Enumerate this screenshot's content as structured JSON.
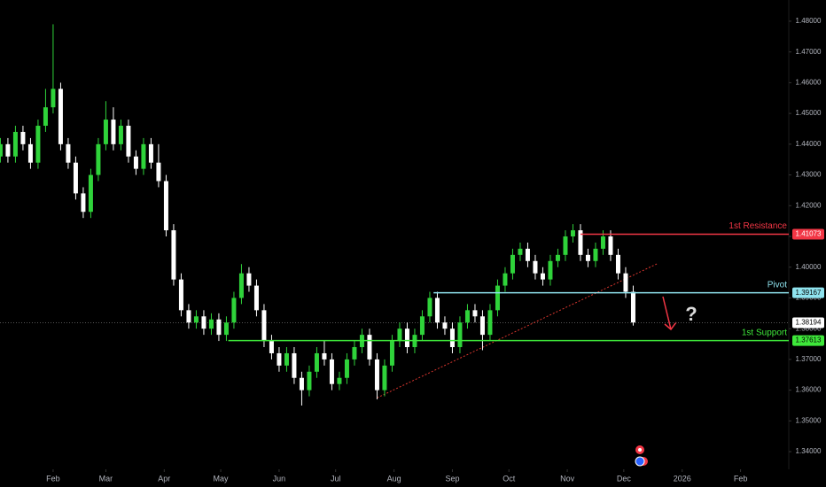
{
  "chart_data": {
    "type": "candlestick",
    "x": [
      3,
      7,
      11,
      15,
      19,
      23,
      27,
      31,
      35,
      39,
      43,
      47,
      51,
      55,
      59,
      63,
      67,
      71,
      75,
      79,
      83,
      87,
      91,
      95,
      99,
      103,
      107,
      111,
      115,
      119,
      123,
      127,
      131,
      135,
      139,
      143,
      147,
      151,
      155,
      159,
      163,
      167,
      171,
      175,
      179,
      183,
      187,
      191,
      195,
      199,
      203,
      207,
      211,
      215,
      219,
      223,
      227,
      231,
      235,
      239,
      243,
      247,
      251,
      255,
      259,
      263,
      267,
      271,
      275,
      279,
      283,
      287,
      291,
      295,
      299,
      303,
      307,
      311,
      315,
      319,
      323,
      327,
      331,
      335,
      339
    ],
    "open": [
      1.436,
      1.44,
      1.436,
      1.444,
      1.44,
      1.434,
      1.446,
      1.452,
      1.458,
      1.44,
      1.434,
      1.424,
      1.418,
      1.43,
      1.44,
      1.448,
      1.44,
      1.446,
      1.436,
      1.432,
      1.44,
      1.434,
      1.428,
      1.412,
      1.396,
      1.386,
      1.382,
      1.384,
      1.38,
      1.383,
      1.378,
      1.382,
      1.39,
      1.398,
      1.394,
      1.386,
      1.376,
      1.372,
      1.368,
      1.372,
      1.364,
      1.36,
      1.366,
      1.372,
      1.37,
      1.362,
      1.364,
      1.37,
      1.374,
      1.378,
      1.37,
      1.36,
      1.368,
      1.376,
      1.38,
      1.374,
      1.378,
      1.384,
      1.39,
      1.382,
      1.38,
      1.374,
      1.382,
      1.386,
      1.384,
      1.378,
      1.386,
      1.394,
      1.398,
      1.404,
      1.406,
      1.402,
      1.398,
      1.396,
      1.402,
      1.404,
      1.41,
      1.412,
      1.404,
      1.402,
      1.406,
      1.41,
      1.404,
      1.398,
      1.392
    ],
    "high": [
      1.442,
      1.442,
      1.446,
      1.446,
      1.442,
      1.448,
      1.458,
      1.479,
      1.46,
      1.442,
      1.436,
      1.426,
      1.432,
      1.442,
      1.454,
      1.452,
      1.448,
      1.448,
      1.438,
      1.442,
      1.442,
      1.44,
      1.43,
      1.414,
      1.398,
      1.388,
      1.386,
      1.386,
      1.385,
      1.385,
      1.384,
      1.392,
      1.401,
      1.4,
      1.396,
      1.388,
      1.378,
      1.374,
      1.374,
      1.374,
      1.366,
      1.368,
      1.374,
      1.376,
      1.372,
      1.366,
      1.372,
      1.376,
      1.38,
      1.38,
      1.372,
      1.37,
      1.378,
      1.382,
      1.382,
      1.38,
      1.386,
      1.392,
      1.392,
      1.384,
      1.382,
      1.384,
      1.388,
      1.388,
      1.386,
      1.388,
      1.396,
      1.4,
      1.406,
      1.408,
      1.408,
      1.404,
      1.4,
      1.404,
      1.406,
      1.412,
      1.414,
      1.414,
      1.406,
      1.408,
      1.412,
      1.412,
      1.406,
      1.4,
      1.394
    ],
    "low": [
      1.434,
      1.434,
      1.434,
      1.438,
      1.432,
      1.432,
      1.444,
      1.45,
      1.438,
      1.432,
      1.422,
      1.416,
      1.416,
      1.428,
      1.438,
      1.438,
      1.438,
      1.434,
      1.43,
      1.43,
      1.432,
      1.426,
      1.41,
      1.394,
      1.384,
      1.38,
      1.38,
      1.378,
      1.378,
      1.376,
      1.376,
      1.38,
      1.388,
      1.392,
      1.384,
      1.374,
      1.37,
      1.366,
      1.366,
      1.362,
      1.355,
      1.358,
      1.364,
      1.368,
      1.36,
      1.36,
      1.362,
      1.368,
      1.372,
      1.368,
      1.357,
      1.358,
      1.366,
      1.374,
      1.372,
      1.372,
      1.376,
      1.382,
      1.38,
      1.378,
      1.372,
      1.372,
      1.38,
      1.382,
      1.373,
      1.376,
      1.384,
      1.392,
      1.396,
      1.402,
      1.4,
      1.396,
      1.394,
      1.394,
      1.4,
      1.402,
      1.408,
      1.402,
      1.4,
      1.4,
      1.404,
      1.402,
      1.396,
      1.39,
      1.381
    ],
    "close": [
      1.44,
      1.436,
      1.444,
      1.44,
      1.434,
      1.446,
      1.452,
      1.458,
      1.44,
      1.434,
      1.424,
      1.418,
      1.43,
      1.44,
      1.448,
      1.44,
      1.446,
      1.436,
      1.432,
      1.44,
      1.434,
      1.428,
      1.412,
      1.396,
      1.386,
      1.382,
      1.384,
      1.38,
      1.383,
      1.378,
      1.382,
      1.39,
      1.398,
      1.394,
      1.386,
      1.376,
      1.372,
      1.368,
      1.372,
      1.364,
      1.36,
      1.366,
      1.372,
      1.37,
      1.362,
      1.364,
      1.37,
      1.374,
      1.378,
      1.37,
      1.36,
      1.368,
      1.376,
      1.38,
      1.374,
      1.378,
      1.384,
      1.39,
      1.382,
      1.38,
      1.374,
      1.382,
      1.386,
      1.384,
      1.378,
      1.386,
      1.394,
      1.398,
      1.404,
      1.406,
      1.402,
      1.398,
      1.396,
      1.402,
      1.404,
      1.41,
      1.412,
      1.404,
      1.402,
      1.406,
      1.41,
      1.404,
      1.398,
      1.392,
      1.382
    ],
    "up_color": "#2fd33a",
    "down_color": "#ffffff",
    "xlim": [
      2.8,
      421.6
    ],
    "xticks": [
      {
        "value": 31,
        "label": "Feb"
      },
      {
        "value": 59,
        "label": "Mar"
      },
      {
        "value": 90,
        "label": "Apr"
      },
      {
        "value": 120,
        "label": "May"
      },
      {
        "value": 151,
        "label": "Jun"
      },
      {
        "value": 181,
        "label": "Jul"
      },
      {
        "value": 212,
        "label": "Aug"
      },
      {
        "value": 243,
        "label": "Sep"
      },
      {
        "value": 273,
        "label": "Oct"
      },
      {
        "value": 304,
        "label": "Nov"
      },
      {
        "value": 334,
        "label": "Dec"
      },
      {
        "value": 365,
        "label": "2026"
      },
      {
        "value": 396,
        "label": "Feb"
      }
    ],
    "ylim": [
      1.3285,
      1.4869
    ],
    "yticks": [
      {
        "value": 1.34,
        "label": "1.34000"
      },
      {
        "value": 1.35,
        "label": "1.35000"
      },
      {
        "value": 1.36,
        "label": "1.36000"
      },
      {
        "value": 1.37,
        "label": "1.37000"
      },
      {
        "value": 1.38,
        "label": "1.38000"
      },
      {
        "value": 1.39,
        "label": "1.39000"
      },
      {
        "value": 1.4,
        "label": "1.40000"
      },
      {
        "value": 1.41,
        "label": "1.41000"
      },
      {
        "value": 1.42,
        "label": "1.42000"
      },
      {
        "value": 1.43,
        "label": "1.43000"
      },
      {
        "value": 1.44,
        "label": "1.44000"
      },
      {
        "value": 1.45,
        "label": "1.45000"
      },
      {
        "value": 1.46,
        "label": "1.46000"
      },
      {
        "value": 1.47,
        "label": "1.47000"
      },
      {
        "value": 1.48,
        "label": "1.48000"
      }
    ],
    "grid": false,
    "levels": [
      {
        "name": "1st Resistance",
        "value": 1.41073,
        "start": 311,
        "color": "#f23645",
        "text_color": "#ffffff"
      },
      {
        "name": "Pivot",
        "value": 1.39167,
        "start": 233,
        "color": "#8fe3ee",
        "text_color": "#000000"
      },
      {
        "name": "1st Support",
        "value": 1.37613,
        "start": 124,
        "color": "#3ee83a",
        "text_color": "#000000"
      }
    ],
    "last_price": 1.38194,
    "trendline": {
      "x": [
        203,
        352
      ],
      "y": [
        1.3575,
        1.4012
      ],
      "color": "#d8362e"
    }
  }
}
